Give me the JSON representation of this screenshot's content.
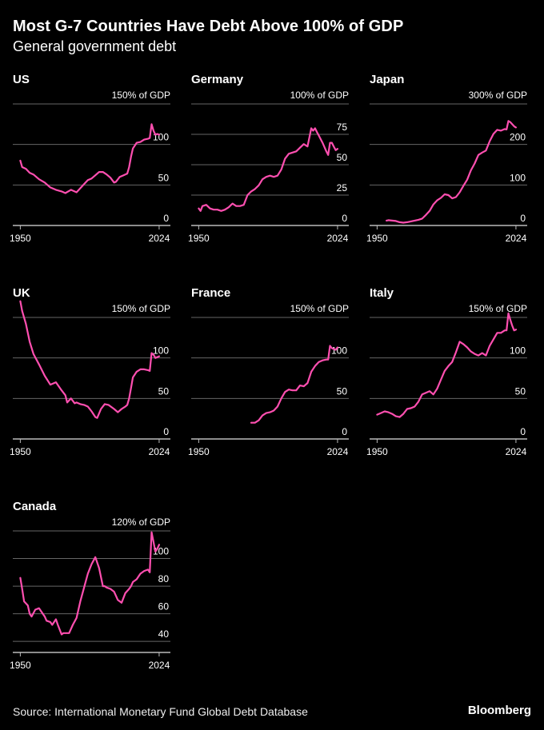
{
  "header": {
    "title": "Most G-7 Countries Have Debt Above 100% of GDP",
    "subtitle": "General government debt"
  },
  "footer": {
    "source": "Source: International Monetary Fund Global Debt Database",
    "brand": "Bloomberg"
  },
  "colors": {
    "line": "#ff4fb0",
    "grid": "#666666",
    "axis": "#bbbbbb",
    "background": "#000000"
  },
  "chart_data": [
    {
      "type": "line",
      "country": "US",
      "x_ticks": [
        "1950",
        "2024"
      ],
      "xlim": [
        1946,
        2030
      ],
      "y_unit_label": "150% of GDP",
      "y_ticks": [
        "0",
        "50",
        "100"
      ],
      "y_tick_values": [
        0,
        50,
        100
      ],
      "ylim": [
        0,
        150
      ],
      "series": [
        {
          "x": [
            1950,
            1951,
            1953,
            1955,
            1957,
            1960,
            1963,
            1966,
            1969,
            1972,
            1974,
            1977,
            1980,
            1982,
            1984,
            1986,
            1988,
            1990,
            1992,
            1994,
            1996,
            1998,
            2000,
            2001,
            2003,
            2005,
            2007,
            2008,
            2009,
            2010,
            2012,
            2014,
            2016,
            2018,
            2019,
            2020,
            2021,
            2022,
            2023,
            2024
          ],
          "y": [
            80,
            72,
            70,
            65,
            63,
            57,
            53,
            47,
            44,
            42,
            40,
            44,
            41,
            46,
            51,
            56,
            58,
            62,
            66,
            66,
            63,
            59,
            53,
            54,
            60,
            62,
            64,
            72,
            85,
            95,
            102,
            103,
            106,
            107,
            108,
            125,
            117,
            112,
            113,
            112
          ]
        }
      ]
    },
    {
      "type": "line",
      "country": "Germany",
      "x_ticks": [
        "1950",
        "2024"
      ],
      "xlim": [
        1946,
        2030
      ],
      "y_unit_label": "100% of GDP",
      "y_ticks": [
        "0",
        "25",
        "50",
        "75"
      ],
      "y_tick_values": [
        0,
        25,
        50,
        75
      ],
      "ylim": [
        0,
        100
      ],
      "series": [
        {
          "x": [
            1950,
            1951,
            1952,
            1954,
            1956,
            1958,
            1960,
            1962,
            1964,
            1966,
            1968,
            1970,
            1972,
            1974,
            1976,
            1978,
            1980,
            1982,
            1984,
            1986,
            1988,
            1990,
            1992,
            1994,
            1996,
            1998,
            2000,
            2002,
            2004,
            2006,
            2008,
            2010,
            2011,
            2012,
            2013,
            2014,
            2016,
            2018,
            2019,
            2020,
            2021,
            2022,
            2023,
            2024
          ],
          "y": [
            14,
            12,
            16,
            17,
            14,
            13,
            13,
            12,
            13,
            15,
            18,
            16,
            16,
            17,
            25,
            28,
            30,
            33,
            38,
            40,
            41,
            40,
            41,
            46,
            55,
            59,
            60,
            61,
            64,
            67,
            65,
            80,
            78,
            80,
            77,
            74,
            68,
            61,
            58,
            68,
            68,
            65,
            62,
            63
          ]
        }
      ]
    },
    {
      "type": "line",
      "country": "Japan",
      "x_ticks": [
        "1950",
        "2024"
      ],
      "xlim": [
        1946,
        2030
      ],
      "y_unit_label": "300% of GDP",
      "y_ticks": [
        "0",
        "100",
        "200"
      ],
      "y_tick_values": [
        0,
        100,
        200
      ],
      "ylim": [
        0,
        300
      ],
      "series": [
        {
          "x": [
            1955,
            1956,
            1958,
            1960,
            1962,
            1964,
            1966,
            1968,
            1970,
            1972,
            1974,
            1976,
            1978,
            1980,
            1982,
            1984,
            1986,
            1988,
            1990,
            1992,
            1994,
            1996,
            1998,
            2000,
            2002,
            2004,
            2006,
            2008,
            2010,
            2012,
            2014,
            2016,
            2018,
            2019,
            2020,
            2021,
            2022,
            2023,
            2024
          ],
          "y": [
            12,
            13,
            12,
            11,
            8,
            7,
            8,
            10,
            12,
            14,
            17,
            26,
            36,
            52,
            62,
            68,
            77,
            75,
            67,
            70,
            82,
            98,
            113,
            136,
            153,
            174,
            180,
            185,
            208,
            226,
            236,
            234,
            238,
            237,
            258,
            255,
            250,
            245,
            242
          ]
        }
      ]
    },
    {
      "type": "line",
      "country": "UK",
      "x_ticks": [
        "1950",
        "2024"
      ],
      "xlim": [
        1946,
        2030
      ],
      "y_unit_label": "150% of GDP",
      "y_ticks": [
        "0",
        "50",
        "100"
      ],
      "y_tick_values": [
        0,
        50,
        100
      ],
      "ylim": [
        0,
        150
      ],
      "series": [
        {
          "x": [
            1950,
            1951,
            1953,
            1955,
            1957,
            1960,
            1963,
            1966,
            1969,
            1972,
            1974,
            1975,
            1977,
            1979,
            1980,
            1982,
            1984,
            1986,
            1988,
            1990,
            1991,
            1993,
            1995,
            1997,
            2000,
            2002,
            2004,
            2006,
            2007,
            2008,
            2009,
            2010,
            2012,
            2014,
            2016,
            2018,
            2019,
            2020,
            2021,
            2022,
            2023,
            2024
          ],
          "y": [
            170,
            158,
            142,
            120,
            105,
            92,
            78,
            67,
            70,
            60,
            54,
            45,
            50,
            44,
            45,
            43,
            42,
            40,
            34,
            27,
            26,
            37,
            43,
            42,
            37,
            33,
            37,
            40,
            42,
            50,
            63,
            76,
            83,
            86,
            86,
            85,
            84,
            106,
            104,
            100,
            101,
            102
          ]
        }
      ]
    },
    {
      "type": "line",
      "country": "France",
      "x_ticks": [
        "1950",
        "2024"
      ],
      "xlim": [
        1946,
        2030
      ],
      "y_unit_label": "150% of GDP",
      "y_ticks": [
        "0",
        "50",
        "100"
      ],
      "y_tick_values": [
        0,
        50,
        100
      ],
      "ylim": [
        0,
        150
      ],
      "series": [
        {
          "x": [
            1978,
            1980,
            1982,
            1984,
            1986,
            1988,
            1990,
            1992,
            1994,
            1996,
            1998,
            2000,
            2002,
            2004,
            2006,
            2008,
            2010,
            2012,
            2014,
            2016,
            2018,
            2019,
            2020,
            2021,
            2022,
            2023,
            2024
          ],
          "y": [
            20,
            20,
            23,
            29,
            32,
            33,
            35,
            40,
            50,
            58,
            61,
            60,
            60,
            66,
            65,
            69,
            83,
            90,
            95,
            97,
            98,
            98,
            115,
            112,
            111,
            110,
            113
          ]
        }
      ]
    },
    {
      "type": "line",
      "country": "Italy",
      "x_ticks": [
        "1950",
        "2024"
      ],
      "xlim": [
        1946,
        2030
      ],
      "y_unit_label": "150% of GDP",
      "y_ticks": [
        "0",
        "50",
        "100"
      ],
      "y_tick_values": [
        0,
        50,
        100
      ],
      "ylim": [
        0,
        150
      ],
      "series": [
        {
          "x": [
            1950,
            1952,
            1954,
            1956,
            1958,
            1960,
            1962,
            1964,
            1966,
            1968,
            1970,
            1972,
            1974,
            1976,
            1978,
            1980,
            1982,
            1984,
            1986,
            1988,
            1990,
            1992,
            1994,
            1996,
            1998,
            2000,
            2002,
            2004,
            2006,
            2008,
            2010,
            2012,
            2014,
            2016,
            2018,
            2019,
            2020,
            2021,
            2022,
            2023,
            2024
          ],
          "y": [
            30,
            32,
            34,
            33,
            31,
            28,
            27,
            31,
            37,
            38,
            40,
            46,
            55,
            57,
            59,
            55,
            62,
            73,
            84,
            90,
            95,
            107,
            120,
            117,
            113,
            108,
            105,
            103,
            106,
            103,
            115,
            123,
            131,
            131,
            134,
            134,
            155,
            147,
            140,
            134,
            135
          ]
        }
      ]
    },
    {
      "type": "line",
      "country": "Canada",
      "x_ticks": [
        "1950",
        "2024"
      ],
      "xlim": [
        1946,
        2030
      ],
      "y_unit_label": "120% of GDP",
      "y_ticks": [
        "40",
        "60",
        "80",
        "100"
      ],
      "y_tick_values": [
        40,
        60,
        80,
        100
      ],
      "ylim": [
        32,
        120
      ],
      "series": [
        {
          "x": [
            1950,
            1951,
            1952,
            1954,
            1955,
            1956,
            1958,
            1960,
            1961,
            1963,
            1964,
            1966,
            1967,
            1969,
            1970,
            1972,
            1973,
            1974,
            1976,
            1978,
            1980,
            1982,
            1984,
            1986,
            1988,
            1990,
            1992,
            1994,
            1995,
            1996,
            1998,
            2000,
            2002,
            2004,
            2006,
            2008,
            2009,
            2010,
            2012,
            2014,
            2016,
            2018,
            2019,
            2020,
            2021,
            2022,
            2023,
            2024
          ],
          "y": [
            86,
            78,
            69,
            66,
            60,
            58,
            63,
            64,
            62,
            58,
            55,
            54,
            52,
            56,
            52,
            45,
            46,
            46,
            46,
            52,
            57,
            69,
            79,
            89,
            96,
            101,
            93,
            80,
            80,
            79,
            78,
            76,
            70,
            68,
            75,
            78,
            80,
            83,
            85,
            89,
            91,
            92,
            90,
            119,
            112,
            105,
            107,
            110
          ]
        }
      ]
    }
  ]
}
